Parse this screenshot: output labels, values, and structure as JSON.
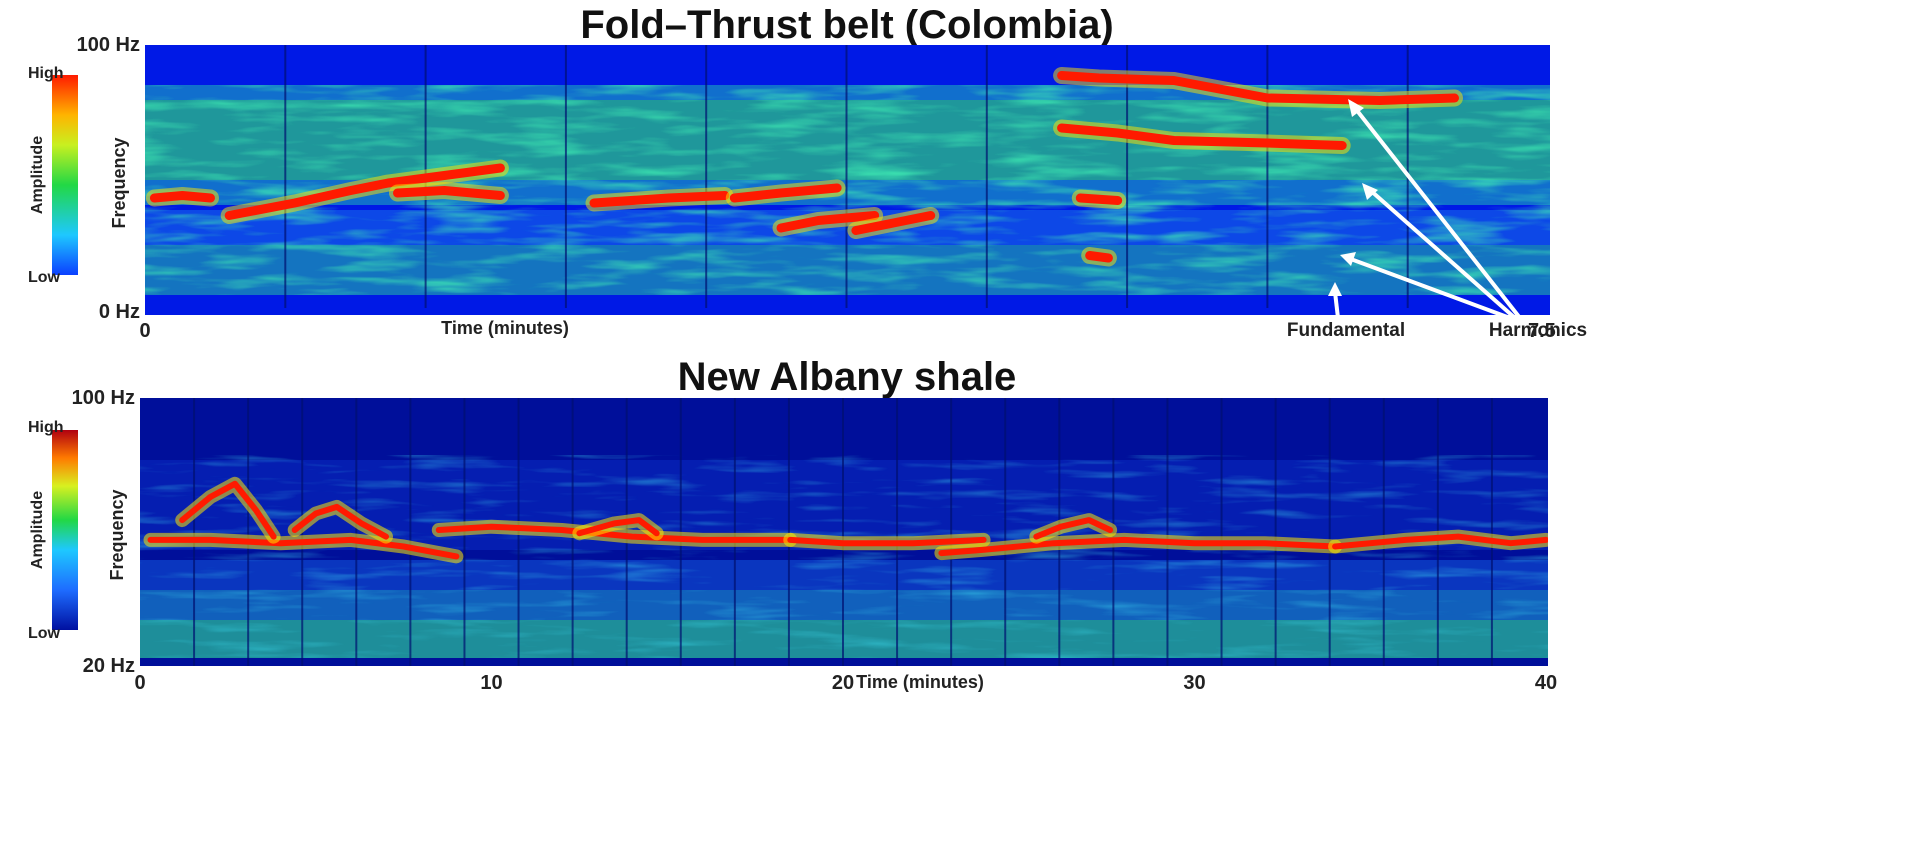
{
  "chart_data": [
    {
      "type": "heatmap",
      "title": "Fold–Thrust belt (Colombia)",
      "xlabel": "Time (minutes)",
      "ylabel": "Frequency",
      "x_ticks": [
        "0",
        "7.5"
      ],
      "y_ticks": [
        "100 Hz",
        "0 Hz"
      ],
      "xlim": [
        0,
        7.5
      ],
      "ylim": [
        0,
        100
      ],
      "colorbar": {
        "label": "Amplitude",
        "high": "High",
        "low": "Low"
      },
      "annotations": [
        {
          "text": "Fundamental"
        },
        {
          "text": "Harmonics"
        }
      ],
      "tremor_traces": [
        {
          "points": [
            [
              0.05,
              40
            ],
            [
              0.2,
              41
            ],
            [
              0.35,
              40
            ]
          ]
        },
        {
          "points": [
            [
              0.45,
              33
            ],
            [
              0.8,
              38
            ],
            [
              1.1,
              43
            ],
            [
              1.3,
              46
            ],
            [
              1.6,
              49
            ],
            [
              1.9,
              52
            ]
          ]
        },
        {
          "points": [
            [
              1.35,
              42
            ],
            [
              1.6,
              43
            ],
            [
              1.9,
              41
            ]
          ]
        },
        {
          "points": [
            [
              2.4,
              38
            ],
            [
              2.8,
              40
            ],
            [
              3.1,
              41
            ]
          ]
        },
        {
          "points": [
            [
              3.15,
              40
            ],
            [
              3.4,
              42
            ],
            [
              3.7,
              44
            ]
          ]
        },
        {
          "points": [
            [
              3.4,
              28
            ],
            [
              3.6,
              31
            ],
            [
              3.9,
              33
            ]
          ]
        },
        {
          "points": [
            [
              3.8,
              27
            ],
            [
              4.0,
              30
            ],
            [
              4.2,
              33
            ]
          ]
        },
        {
          "points": [
            [
              4.9,
              89
            ],
            [
              5.1,
              88
            ],
            [
              5.5,
              87
            ],
            [
              6.0,
              80
            ],
            [
              6.6,
              79
            ],
            [
              7.0,
              80
            ]
          ]
        },
        {
          "points": [
            [
              4.9,
              68
            ],
            [
              5.2,
              66
            ],
            [
              5.5,
              63
            ],
            [
              6.0,
              62
            ],
            [
              6.4,
              61
            ]
          ]
        },
        {
          "points": [
            [
              5.0,
              40
            ],
            [
              5.2,
              39
            ]
          ]
        },
        {
          "points": [
            [
              5.05,
              17
            ],
            [
              5.15,
              16
            ]
          ]
        }
      ]
    },
    {
      "type": "heatmap",
      "title": "New Albany shale",
      "xlabel": "Time (minutes)",
      "ylabel": "Frequency",
      "x_ticks": [
        "0",
        "10",
        "20",
        "30",
        "40"
      ],
      "y_ticks": [
        "100 Hz",
        "20 Hz"
      ],
      "xlim": [
        0,
        40
      ],
      "ylim": [
        20,
        100
      ],
      "colorbar": {
        "label": "Amplitude",
        "high": "High",
        "low": "Low"
      },
      "tremor_traces": [
        {
          "points": [
            [
              0.3,
              57
            ],
            [
              2,
              57
            ],
            [
              4,
              56
            ],
            [
              6,
              57
            ],
            [
              7.5,
              55
            ],
            [
              9,
              52
            ]
          ]
        },
        {
          "points": [
            [
              8.5,
              60
            ],
            [
              10,
              61
            ],
            [
              12,
              60
            ],
            [
              14,
              58
            ],
            [
              16,
              57
            ],
            [
              18.5,
              57
            ]
          ]
        },
        {
          "points": [
            [
              18.5,
              57
            ],
            [
              20,
              56
            ],
            [
              22,
              56
            ],
            [
              24,
              57
            ]
          ]
        },
        {
          "points": [
            [
              22.8,
              53
            ],
            [
              24,
              54
            ],
            [
              26,
              56
            ],
            [
              28,
              57
            ],
            [
              30,
              56
            ],
            [
              32,
              56
            ],
            [
              34,
              55
            ]
          ]
        },
        {
          "points": [
            [
              34,
              55
            ],
            [
              36,
              57
            ],
            [
              37.5,
              58
            ],
            [
              39,
              56
            ],
            [
              40,
              57
            ]
          ]
        },
        {
          "points": [
            [
              1.2,
              63
            ],
            [
              2,
              70
            ],
            [
              2.7,
              74
            ],
            [
              3.3,
              66
            ],
            [
              3.8,
              58
            ]
          ]
        },
        {
          "points": [
            [
              4.4,
              60
            ],
            [
              5,
              65
            ],
            [
              5.6,
              67
            ],
            [
              6.3,
              62
            ],
            [
              7,
              58
            ]
          ]
        },
        {
          "points": [
            [
              12.5,
              59
            ],
            [
              13.5,
              62
            ],
            [
              14.2,
              63
            ],
            [
              14.7,
              59
            ]
          ]
        },
        {
          "points": [
            [
              25.5,
              58
            ],
            [
              26.2,
              61
            ],
            [
              27,
              63
            ],
            [
              27.6,
              60
            ]
          ]
        }
      ]
    }
  ],
  "colors": {
    "background_low": "#0019e6",
    "high": "#ff1a00",
    "mid": "#22d845"
  }
}
